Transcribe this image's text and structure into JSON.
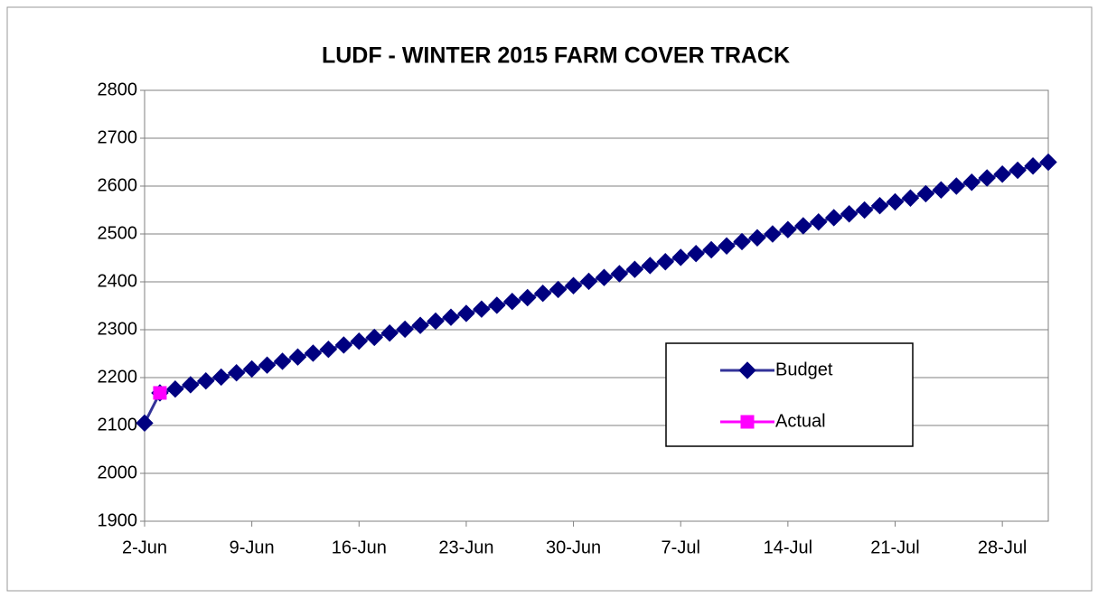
{
  "chart_data": {
    "type": "line",
    "title": "LUDF  - WINTER 2015 FARM COVER TRACK",
    "categories": [
      "2-Jun",
      null,
      null,
      null,
      null,
      null,
      null,
      "9-Jun",
      null,
      null,
      null,
      null,
      null,
      null,
      "16-Jun",
      null,
      null,
      null,
      null,
      null,
      null,
      "23-Jun",
      null,
      null,
      null,
      null,
      null,
      null,
      "30-Jun",
      null,
      null,
      null,
      null,
      null,
      null,
      "7-Jul",
      null,
      null,
      null,
      null,
      null,
      null,
      "14-Jul",
      null,
      null,
      null,
      null,
      null,
      null,
      "21-Jul",
      null,
      null,
      null,
      null,
      null,
      null,
      "28-Jul",
      null,
      null,
      null
    ],
    "series": [
      {
        "name": "Budget",
        "color": "#000080",
        "marker": "diamond",
        "values": [
          2105,
          2168,
          2176,
          2185,
          2193,
          2201,
          2210,
          2218,
          2226,
          2234,
          2243,
          2251,
          2259,
          2268,
          2276,
          2284,
          2293,
          2301,
          2309,
          2318,
          2326,
          2334,
          2343,
          2351,
          2359,
          2367,
          2376,
          2384,
          2392,
          2401,
          2409,
          2417,
          2426,
          2434,
          2442,
          2451,
          2459,
          2467,
          2475,
          2484,
          2492,
          2500,
          2509,
          2517,
          2525,
          2534,
          2542,
          2550,
          2559,
          2567,
          2575,
          2584,
          2592,
          2600,
          2608,
          2617,
          2625,
          2633,
          2642,
          2650
        ]
      },
      {
        "name": "Actual",
        "color": "#ff00ff",
        "marker": "square",
        "values": [
          null,
          2168,
          null,
          null,
          null,
          null,
          null,
          null,
          null,
          null,
          null,
          null,
          null,
          null,
          null,
          null,
          null,
          null,
          null,
          null,
          null,
          null,
          null,
          null,
          null,
          null,
          null,
          null,
          null,
          null,
          null,
          null,
          null,
          null,
          null,
          null,
          null,
          null,
          null,
          null,
          null,
          null,
          null,
          null,
          null,
          null,
          null,
          null,
          null,
          null,
          null,
          null,
          null,
          null,
          null,
          null,
          null,
          null,
          null,
          null
        ]
      }
    ],
    "ylim": [
      1900,
      2800
    ],
    "yticks": [
      1900,
      2000,
      2100,
      2200,
      2300,
      2400,
      2500,
      2600,
      2700,
      2800
    ],
    "grid": true,
    "legend": "lower right"
  }
}
